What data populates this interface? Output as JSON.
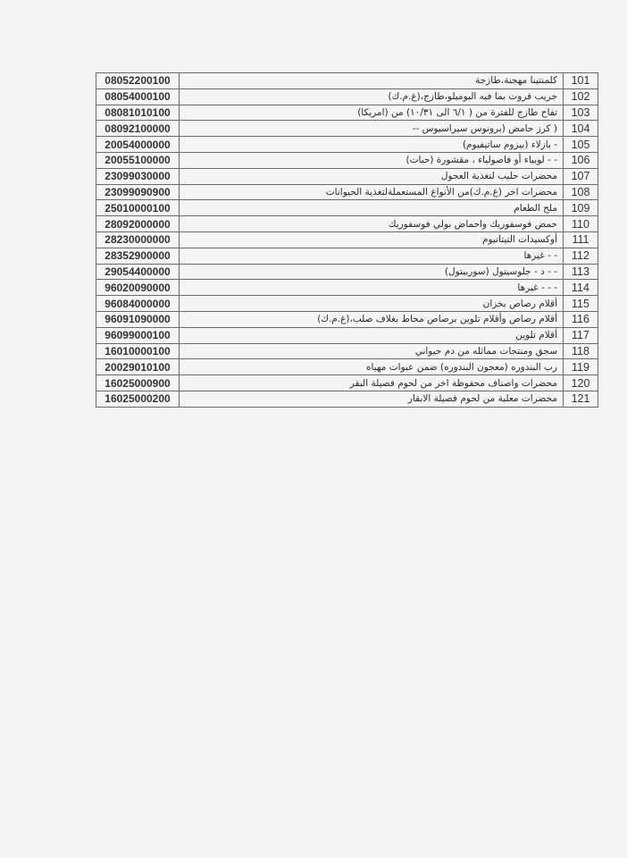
{
  "table": {
    "rows": [
      {
        "num": "101",
        "desc": "كلمنتينا مهجنة،طازجة",
        "code": "08052200100"
      },
      {
        "num": "102",
        "desc": "جريب فروت بما فيه البوميلو،طازج،(غ.م.ك)",
        "code": "08054000100"
      },
      {
        "num": "103",
        "desc": "تفاح طازج للفترة من ( ٦/١ الى ١٠/٣١) من (امريكا)",
        "code": "08081010100"
      },
      {
        "num": "104",
        "desc": "( كرز حامض (برونوس سيراسيوس --",
        "code": "08092100000"
      },
      {
        "num": "105",
        "desc": "- بازلاء (بيزوم ساتيفيوم)",
        "code": "20054000000"
      },
      {
        "num": "106",
        "desc": "- - لوبياء أو فاصولياء ، مقشورة (حبات)",
        "code": "20055100000"
      },
      {
        "num": "107",
        "desc": "محضرات حليب لتغذية العجول",
        "code": "23099030000"
      },
      {
        "num": "108",
        "desc": "محضرات اخر (غ.م.ك)من الأنواع المستعملةلتغذية الحيوانات",
        "code": "23099090900"
      },
      {
        "num": "109",
        "desc": "ملح الطعام",
        "code": "25010000100"
      },
      {
        "num": "110",
        "desc": "حمض فوسفوريك واحماض بولي فوسفوريك",
        "code": "28092000000"
      },
      {
        "num": "111",
        "desc": "أوكسيدات التيتانيوم",
        "code": "28230000000"
      },
      {
        "num": "112",
        "desc": "- - غيرها",
        "code": "28352900000"
      },
      {
        "num": "113",
        "desc": "- - د - جلوسيتول (سوربيتول)",
        "code": "29054400000"
      },
      {
        "num": "114",
        "desc": "- - - غيرها",
        "code": "96020090000"
      },
      {
        "num": "115",
        "desc": "أقلام رصاص بخزان",
        "code": "96084000000"
      },
      {
        "num": "116",
        "desc": "أقلام رصاص وأقلام تلوين برصاص محاط بغلاف صلب،(غ.م.ك)",
        "code": "96091090000"
      },
      {
        "num": "117",
        "desc": "أقلام تلوين",
        "code": "96099000100"
      },
      {
        "num": "118",
        "desc": "سجق ومنتجات مماثله من دم حيواني",
        "code": "16010000100"
      },
      {
        "num": "119",
        "desc": "رب البندوره (معجون البندوره) ضمن عبوات مهياه",
        "code": "20029010100"
      },
      {
        "num": "120",
        "desc": "محضرات واصناف محفوظة اخر من لحوم فصيلة البقر",
        "code": "16025000900"
      },
      {
        "num": "121",
        "desc": "محضرات معلبة من لحوم فصيلة الابقار",
        "code": "16025000200"
      }
    ]
  }
}
